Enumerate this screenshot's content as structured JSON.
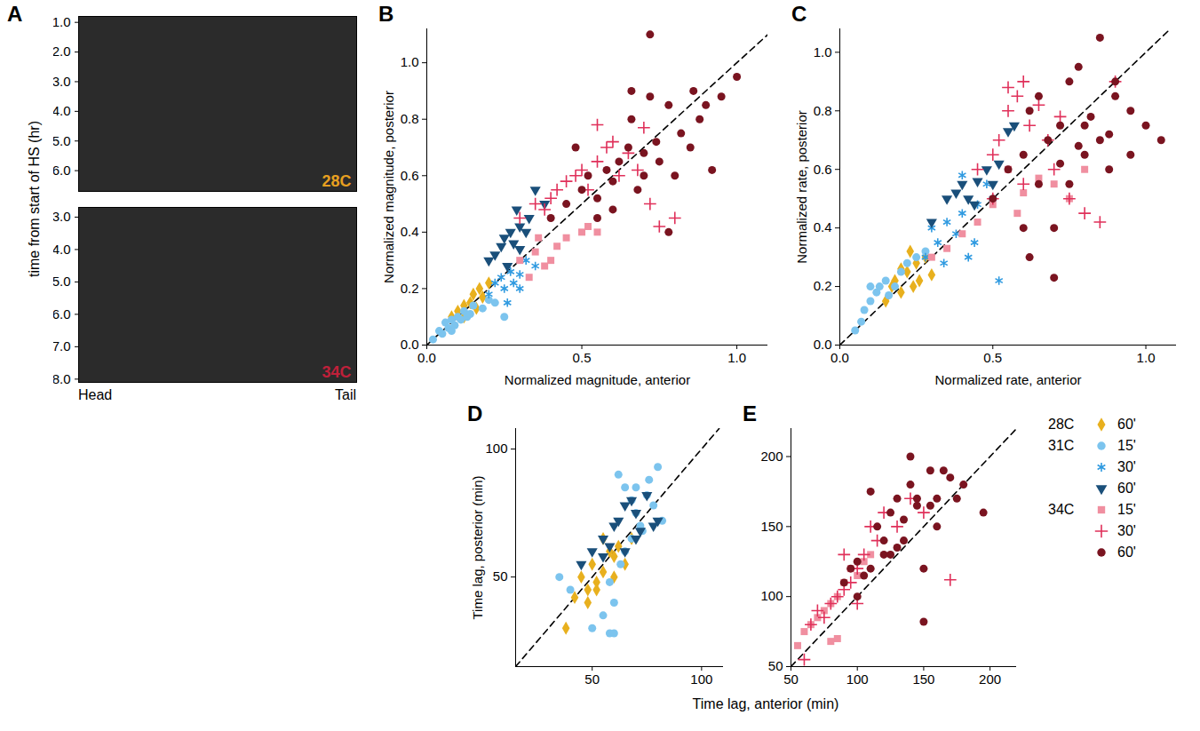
{
  "image_panel": {
    "panel": "A",
    "type": "image",
    "ylabel": "time from start of HS (hr)",
    "x_start_label": "Head",
    "x_end_label": "Tail",
    "panels": [
      {
        "label": "28C",
        "label_color": "#E8A020",
        "ylim": [
          0.8,
          6.7
        ],
        "yticks": [
          1,
          2,
          3,
          4,
          5,
          6
        ]
      },
      {
        "label": "34C",
        "label_color": "#C0203A",
        "ylim": [
          2.7,
          8.1
        ],
        "yticks": [
          3,
          4,
          5,
          6,
          7,
          8
        ]
      }
    ]
  },
  "shared_xlabel": "Time lag, anterior (min)",
  "chart_data": [
    {
      "panel": "B",
      "type": "scatter",
      "xlabel": "Normalized magnitude, anterior",
      "ylabel": "Normalized magnitude, posterior",
      "xlim": [
        0,
        1.1
      ],
      "ylim": [
        0,
        1.12
      ],
      "xticks": [
        0,
        0.5,
        1
      ],
      "yticks": [
        0,
        0.2,
        0.4,
        0.6,
        0.8,
        1
      ],
      "series": [
        {
          "group": "28C",
          "name": "60'",
          "color": "#E8B01E",
          "marker": "diamond",
          "x": [
            0.08,
            0.1,
            0.12,
            0.14,
            0.15,
            0.17,
            0.18,
            0.2,
            0.12,
            0.16
          ],
          "values": [
            0.1,
            0.12,
            0.14,
            0.15,
            0.18,
            0.2,
            0.17,
            0.22,
            0.1,
            0.13
          ]
        },
        {
          "group": "31C",
          "name": "15'",
          "color": "#7CC4EE",
          "marker": "circle",
          "x": [
            0.02,
            0.04,
            0.05,
            0.06,
            0.07,
            0.08,
            0.09,
            0.1,
            0.11,
            0.12,
            0.13,
            0.15,
            0.18,
            0.2,
            0.22,
            0.25,
            0.08,
            0.14
          ],
          "values": [
            0.02,
            0.05,
            0.04,
            0.08,
            0.06,
            0.09,
            0.07,
            0.1,
            0.09,
            0.12,
            0.1,
            0.14,
            0.13,
            0.16,
            0.15,
            0.1,
            0.05,
            0.11
          ]
        },
        {
          "group": "31C",
          "name": "30'",
          "color": "#2F9AE0",
          "marker": "asterisk",
          "x": [
            0.2,
            0.22,
            0.25,
            0.27,
            0.28,
            0.3,
            0.32,
            0.35,
            0.26,
            0.3,
            0.24
          ],
          "values": [
            0.18,
            0.22,
            0.2,
            0.26,
            0.22,
            0.25,
            0.3,
            0.28,
            0.15,
            0.2,
            0.24
          ]
        },
        {
          "group": "31C",
          "name": "60'",
          "color": "#1A4F7A",
          "marker": "triangle-down",
          "x": [
            0.2,
            0.22,
            0.24,
            0.25,
            0.27,
            0.28,
            0.3,
            0.32,
            0.33,
            0.35,
            0.26,
            0.3,
            0.38,
            0.29
          ],
          "values": [
            0.3,
            0.32,
            0.35,
            0.38,
            0.4,
            0.36,
            0.42,
            0.4,
            0.45,
            0.55,
            0.28,
            0.34,
            0.5,
            0.48
          ]
        },
        {
          "group": "34C",
          "name": "15'",
          "color": "#F08FA0",
          "marker": "square",
          "x": [
            0.3,
            0.35,
            0.38,
            0.4,
            0.42,
            0.45,
            0.5,
            0.52,
            0.55,
            0.33,
            0.36
          ],
          "values": [
            0.3,
            0.33,
            0.28,
            0.3,
            0.35,
            0.38,
            0.4,
            0.42,
            0.4,
            0.24,
            0.38
          ]
        },
        {
          "group": "34C",
          "name": "30'",
          "color": "#E0305A",
          "marker": "plus",
          "x": [
            0.3,
            0.35,
            0.4,
            0.42,
            0.45,
            0.48,
            0.5,
            0.52,
            0.55,
            0.58,
            0.6,
            0.62,
            0.65,
            0.7,
            0.72,
            0.75,
            0.8,
            0.55,
            0.38,
            0.68
          ],
          "values": [
            0.45,
            0.5,
            0.52,
            0.55,
            0.58,
            0.6,
            0.62,
            0.55,
            0.65,
            0.7,
            0.72,
            0.6,
            0.68,
            0.77,
            0.5,
            0.42,
            0.45,
            0.78,
            0.48,
            0.62
          ]
        },
        {
          "group": "34C",
          "name": "60'",
          "color": "#7A1420",
          "marker": "circle",
          "x": [
            0.4,
            0.45,
            0.5,
            0.52,
            0.55,
            0.58,
            0.6,
            0.62,
            0.65,
            0.66,
            0.68,
            0.7,
            0.72,
            0.74,
            0.75,
            0.78,
            0.8,
            0.82,
            0.85,
            0.88,
            0.9,
            0.95,
            1.0,
            0.6,
            0.7,
            0.55,
            0.78,
            0.48,
            0.66,
            0.72,
            0.86,
            0.92
          ],
          "values": [
            0.45,
            0.5,
            0.55,
            0.6,
            0.52,
            0.62,
            0.58,
            0.65,
            0.7,
            0.9,
            0.55,
            0.6,
            0.88,
            0.72,
            0.65,
            0.85,
            0.6,
            0.75,
            0.7,
            0.8,
            0.85,
            0.88,
            0.95,
            0.48,
            0.68,
            0.45,
            0.4,
            0.7,
            0.8,
            1.1,
            0.9,
            0.62
          ]
        }
      ]
    },
    {
      "panel": "C",
      "type": "scatter",
      "xlabel": "Normalized rate, anterior",
      "ylabel": "Normalized rate, posterior",
      "xlim": [
        0,
        1.1
      ],
      "ylim": [
        0,
        1.08
      ],
      "xticks": [
        0,
        0.5,
        1
      ],
      "yticks": [
        0,
        0.2,
        0.4,
        0.6,
        0.8,
        1
      ],
      "series": [
        {
          "group": "28C",
          "name": "60'",
          "color": "#E8B01E",
          "marker": "diamond",
          "x": [
            0.15,
            0.17,
            0.18,
            0.2,
            0.22,
            0.24,
            0.25,
            0.26,
            0.28,
            0.3,
            0.2,
            0.23
          ],
          "values": [
            0.15,
            0.2,
            0.22,
            0.18,
            0.25,
            0.2,
            0.28,
            0.22,
            0.3,
            0.24,
            0.26,
            0.32
          ]
        },
        {
          "group": "31C",
          "name": "15'",
          "color": "#7CC4EE",
          "marker": "circle",
          "x": [
            0.05,
            0.07,
            0.08,
            0.1,
            0.12,
            0.13,
            0.15,
            0.18,
            0.2,
            0.22,
            0.25,
            0.28,
            0.1,
            0.16
          ],
          "values": [
            0.05,
            0.08,
            0.12,
            0.15,
            0.18,
            0.2,
            0.22,
            0.2,
            0.25,
            0.28,
            0.3,
            0.32,
            0.2,
            0.17
          ]
        },
        {
          "group": "31C",
          "name": "30'",
          "color": "#2F9AE0",
          "marker": "asterisk",
          "x": [
            0.28,
            0.3,
            0.32,
            0.35,
            0.38,
            0.4,
            0.42,
            0.45,
            0.48,
            0.5,
            0.52,
            0.34,
            0.44,
            0.4
          ],
          "values": [
            0.3,
            0.4,
            0.35,
            0.42,
            0.38,
            0.45,
            0.3,
            0.48,
            0.55,
            0.5,
            0.22,
            0.28,
            0.35,
            0.58
          ]
        },
        {
          "group": "31C",
          "name": "60'",
          "color": "#1A4F7A",
          "marker": "triangle-down",
          "x": [
            0.3,
            0.35,
            0.38,
            0.4,
            0.42,
            0.45,
            0.48,
            0.5,
            0.52,
            0.55,
            0.57,
            0.44
          ],
          "values": [
            0.42,
            0.5,
            0.52,
            0.55,
            0.5,
            0.56,
            0.6,
            0.55,
            0.62,
            0.73,
            0.75,
            0.48
          ]
        },
        {
          "group": "34C",
          "name": "15'",
          "color": "#F08FA0",
          "marker": "square",
          "x": [
            0.3,
            0.35,
            0.4,
            0.45,
            0.5,
            0.55,
            0.6,
            0.65,
            0.7,
            0.75,
            0.58,
            0.8
          ],
          "values": [
            0.3,
            0.33,
            0.38,
            0.42,
            0.48,
            0.6,
            0.52,
            0.57,
            0.55,
            0.5,
            0.45,
            0.6
          ]
        },
        {
          "group": "34C",
          "name": "30'",
          "color": "#E0305A",
          "marker": "plus",
          "x": [
            0.45,
            0.5,
            0.52,
            0.55,
            0.58,
            0.6,
            0.62,
            0.65,
            0.68,
            0.7,
            0.75,
            0.8,
            0.85,
            0.9,
            0.55,
            0.6,
            0.72,
            0.5
          ],
          "values": [
            0.6,
            0.65,
            0.7,
            0.8,
            0.85,
            0.9,
            0.75,
            0.82,
            0.7,
            0.6,
            0.5,
            0.45,
            0.42,
            0.9,
            0.88,
            0.55,
            0.78,
            0.5
          ]
        },
        {
          "group": "34C",
          "name": "60'",
          "color": "#7A1420",
          "marker": "circle",
          "x": [
            0.5,
            0.55,
            0.6,
            0.62,
            0.65,
            0.68,
            0.7,
            0.72,
            0.75,
            0.78,
            0.8,
            0.82,
            0.85,
            0.88,
            0.9,
            0.95,
            1.0,
            1.05,
            0.7,
            0.75,
            0.8,
            0.85,
            0.9,
            0.6,
            0.65,
            0.72,
            0.78,
            0.62,
            0.88,
            0.95
          ],
          "values": [
            0.5,
            0.6,
            0.65,
            0.8,
            0.85,
            0.7,
            0.4,
            0.75,
            0.9,
            0.95,
            0.75,
            0.78,
            0.7,
            0.6,
            0.85,
            0.8,
            0.75,
            0.7,
            0.23,
            0.55,
            0.65,
            1.05,
            0.9,
            0.4,
            0.55,
            0.62,
            0.68,
            0.3,
            0.72,
            0.65
          ]
        }
      ]
    },
    {
      "panel": "D",
      "type": "scatter",
      "ylabel": "Time lag, posterior (min)",
      "xlim": [
        15,
        110
      ],
      "ylim": [
        15,
        108
      ],
      "xticks": [
        50,
        100
      ],
      "yticks": [
        50,
        100
      ],
      "series": [
        {
          "group": "28C",
          "name": "60'",
          "color": "#E8B01E",
          "marker": "diamond",
          "x": [
            38,
            42,
            45,
            48,
            50,
            52,
            55,
            58,
            60,
            62,
            65,
            68,
            55,
            48,
            52,
            60
          ],
          "values": [
            30,
            42,
            50,
            45,
            55,
            48,
            52,
            60,
            58,
            62,
            55,
            65,
            65,
            40,
            45,
            50
          ]
        },
        {
          "group": "31C",
          "name": "15'",
          "color": "#7CC4EE",
          "marker": "circle",
          "x": [
            35,
            40,
            50,
            55,
            58,
            60,
            62,
            65,
            68,
            70,
            72,
            75,
            78,
            80,
            82,
            60,
            65,
            70,
            58,
            63,
            68,
            73,
            76
          ],
          "values": [
            50,
            45,
            30,
            35,
            28,
            40,
            90,
            85,
            80,
            75,
            70,
            82,
            78,
            93,
            72,
            28,
            60,
            85,
            48,
            55,
            65,
            68,
            88
          ]
        },
        {
          "group": "31C",
          "name": "60'",
          "color": "#1A4F7A",
          "marker": "triangle-down",
          "x": [
            45,
            50,
            55,
            60,
            62,
            65,
            68,
            70,
            72,
            75,
            78,
            80,
            55,
            58,
            65,
            70
          ],
          "values": [
            55,
            60,
            65,
            70,
            72,
            78,
            80,
            75,
            68,
            82,
            70,
            72,
            58,
            62,
            60,
            65
          ]
        }
      ]
    },
    {
      "panel": "E",
      "type": "scatter",
      "xlim": [
        50,
        220
      ],
      "ylim": [
        50,
        220
      ],
      "xticks": [
        50,
        100,
        150,
        200
      ],
      "yticks": [
        50,
        100,
        150,
        200
      ],
      "series": [
        {
          "group": "34C",
          "name": "15'",
          "color": "#F08FA0",
          "marker": "square",
          "x": [
            55,
            60,
            65,
            70,
            75,
            80,
            85,
            90,
            95,
            100,
            105,
            110,
            85,
            80
          ],
          "values": [
            65,
            75,
            80,
            85,
            90,
            95,
            100,
            110,
            120,
            115,
            125,
            130,
            70,
            68
          ]
        },
        {
          "group": "34C",
          "name": "30'",
          "color": "#E0305A",
          "marker": "plus",
          "x": [
            60,
            65,
            70,
            75,
            80,
            85,
            90,
            95,
            100,
            105,
            110,
            115,
            120,
            130,
            140,
            150,
            170,
            90,
            100
          ],
          "values": [
            55,
            80,
            90,
            85,
            95,
            100,
            130,
            110,
            120,
            130,
            150,
            140,
            160,
            150,
            170,
            160,
            112,
            105,
            95
          ]
        },
        {
          "group": "34C",
          "name": "60'",
          "color": "#7A1420",
          "marker": "circle",
          "x": [
            90,
            95,
            100,
            105,
            110,
            115,
            120,
            125,
            130,
            135,
            140,
            145,
            150,
            155,
            160,
            165,
            170,
            175,
            180,
            195,
            150,
            140,
            130,
            120,
            110,
            100,
            125,
            135,
            145,
            155,
            160
          ],
          "values": [
            110,
            120,
            125,
            115,
            175,
            150,
            130,
            160,
            170,
            140,
            180,
            165,
            82,
            165,
            150,
            190,
            185,
            170,
            180,
            160,
            120,
            200,
            135,
            140,
            120,
            100,
            130,
            155,
            170,
            190,
            170
          ]
        }
      ]
    }
  ]
}
